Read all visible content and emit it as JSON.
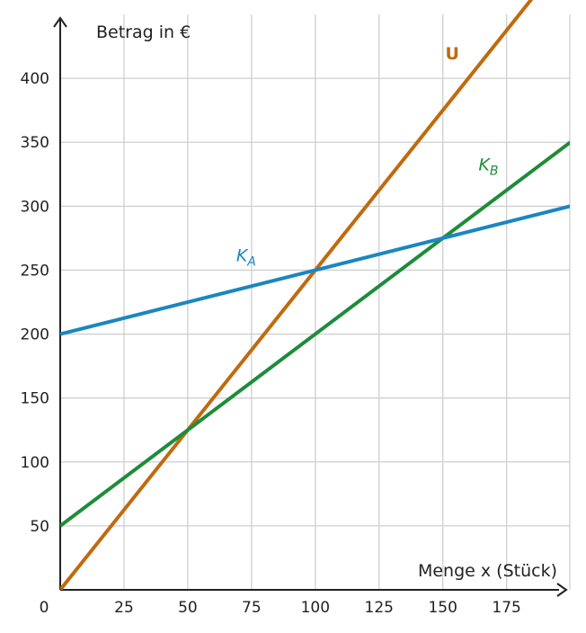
{
  "chart_data": {
    "type": "line",
    "xlabel": "Menge x (Stück)",
    "ylabel": "Betrag in €",
    "xlim": [
      0,
      200
    ],
    "ylim": [
      0,
      450
    ],
    "x_ticks": [
      25,
      50,
      75,
      100,
      125,
      150,
      175
    ],
    "y_ticks": [
      50,
      100,
      150,
      200,
      250,
      300,
      350,
      400
    ],
    "origin_label": "0",
    "grid": true,
    "series": [
      {
        "name": "U",
        "label_main": "U",
        "label_sub": "",
        "italic": false,
        "bold": true,
        "color": "#C06A0E",
        "x": [
          0,
          200
        ],
        "y": [
          0,
          500
        ],
        "label_at": [
          151,
          415
        ]
      },
      {
        "name": "KB",
        "label_main": "K",
        "label_sub": "B",
        "italic": true,
        "bold": false,
        "color": "#1E8C3A",
        "x": [
          0,
          200
        ],
        "y": [
          50,
          350
        ],
        "label_at": [
          164,
          328
        ]
      },
      {
        "name": "KA",
        "label_main": "K",
        "label_sub": "A",
        "italic": true,
        "bold": false,
        "color": "#1B86C0",
        "x": [
          0,
          200
        ],
        "y": [
          200,
          300
        ],
        "label_at": [
          69,
          257
        ]
      }
    ]
  }
}
